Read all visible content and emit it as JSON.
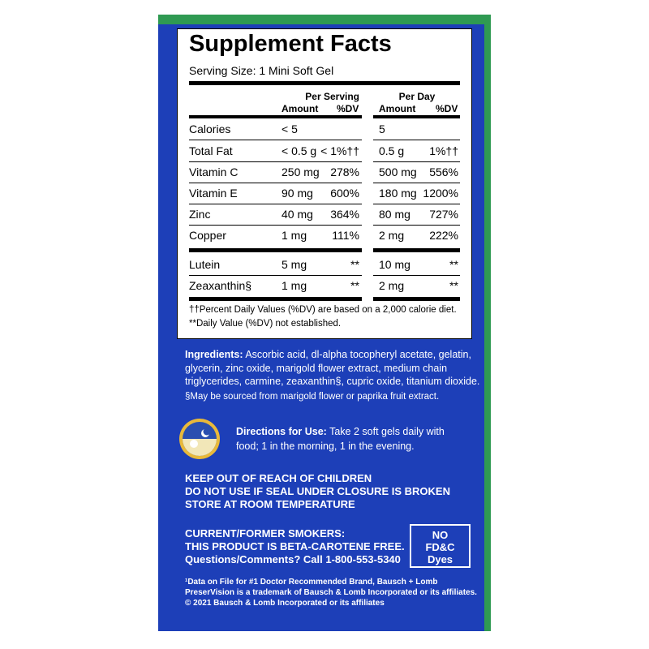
{
  "facts": {
    "title": "Supplement Facts",
    "serving_size": "Serving Size: 1 Mini Soft Gel",
    "per_serving": "Per Serving",
    "per_day": "Per Day",
    "amount": "Amount",
    "dv": "%DV",
    "rows": [
      [
        "Calories",
        "< 5",
        "",
        "5",
        ""
      ],
      [
        "Total Fat",
        "< 0.5 g",
        "< 1%††",
        "0.5 g",
        "1%††"
      ],
      [
        "Vitamin C",
        "250 mg",
        "278%",
        "500 mg",
        "556%"
      ],
      [
        "Vitamin E",
        "90 mg",
        "600%",
        "180 mg",
        "1200%"
      ],
      [
        "Zinc",
        "40 mg",
        "364%",
        "80 mg",
        "727%"
      ],
      [
        "Copper",
        "1 mg",
        "111%",
        "2 mg",
        "222%"
      ],
      [
        "Lutein",
        "5 mg",
        "**",
        "10 mg",
        "**"
      ],
      [
        "Zeaxanthin§",
        "1 mg",
        "**",
        "2 mg",
        "**"
      ]
    ],
    "footnotes": [
      "††Percent Daily Values (%DV) are based on a 2,000 calorie diet.",
      "**Daily Value (%DV) not established."
    ]
  },
  "ingredients": {
    "label": "Ingredients:",
    "lines": [
      " Ascorbic acid, dl-alpha tocopheryl acetate, gelatin,",
      "glycerin, zinc oxide, marigold flower extract, medium chain",
      "triglycerides, carmine, zeaxanthin§, cupric oxide, titanium dioxide."
    ],
    "note": "§May be sourced from marigold flower or paprika fruit extract."
  },
  "directions": {
    "label": "Directions for Use:",
    "lines": [
      " Take 2 soft gels daily with",
      "food; 1 in the morning, 1 in the evening."
    ]
  },
  "warnings": [
    "KEEP OUT OF REACH OF CHILDREN",
    "DO NOT USE IF SEAL UNDER CLOSURE IS BROKEN",
    "STORE AT ROOM TEMPERATURE"
  ],
  "smokers": [
    "CURRENT/FORMER SMOKERS:",
    "THIS PRODUCT IS BETA-CAROTENE FREE."
  ],
  "questions": "Questions/Comments? Call 1-800-553-5340",
  "badge": [
    "NO",
    "FD&C",
    "Dyes"
  ],
  "legal": [
    "¹Data on File for #1 Doctor Recommended Brand, Bausch + Lomb",
    "PreserVision is a trademark of Bausch & Lomb Incorporated or its affiliates.",
    "© 2021 Bausch & Lomb Incorporated or its affiliates"
  ]
}
